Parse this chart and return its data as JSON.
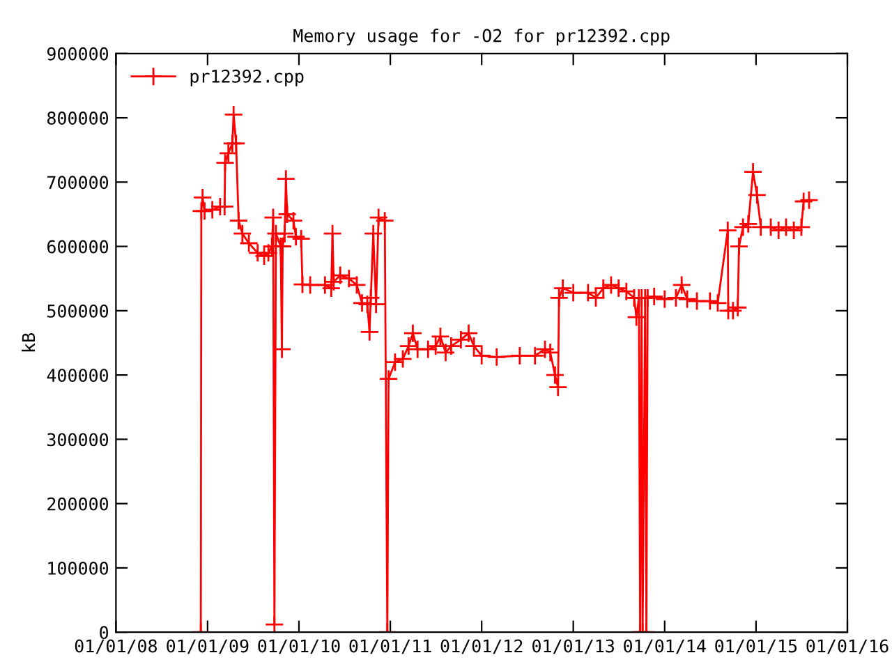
{
  "chart_data": {
    "type": "line",
    "title": "Memory usage for -O2 for pr12392.cpp",
    "ylabel": "kB",
    "x": [
      "2008-12-05",
      "2008-12-07",
      "2008-12-12",
      "2008-12-20",
      "2009-01-20",
      "2009-02-20",
      "2009-03-10",
      "2009-03-12",
      "2009-03-25",
      "2009-04-10",
      "2009-04-15",
      "2009-04-25",
      "2009-05-05",
      "2009-05-20",
      "2009-06-15",
      "2009-07-20",
      "2009-08-15",
      "2009-09-01",
      "2009-09-15",
      "2009-09-20",
      "2009-09-25",
      "2009-10-01",
      "2009-10-20",
      "2009-10-25",
      "2009-10-28",
      "2009-11-05",
      "2009-11-10",
      "2009-11-15",
      "2009-12-10",
      "2009-12-20",
      "2010-01-10",
      "2010-01-15",
      "2010-02-15",
      "2010-04-15",
      "2010-05-10",
      "2010-05-15",
      "2010-05-20",
      "2010-06-15",
      "2010-07-20",
      "2010-08-20",
      "2010-09-10",
      "2010-10-01",
      "2010-10-10",
      "2010-10-15",
      "2010-10-25",
      "2010-11-05",
      "2010-11-15",
      "2010-12-10",
      "2010-12-20",
      "2010-12-25",
      "2011-01-20",
      "2011-02-20",
      "2011-03-15",
      "2011-04-01",
      "2011-04-20",
      "2011-06-01",
      "2011-07-01",
      "2011-07-20",
      "2011-08-10",
      "2011-09-01",
      "2011-10-10",
      "2011-11-10",
      "2011-12-01",
      "2012-01-01",
      "2012-03-01",
      "2012-06-01",
      "2012-08-01",
      "2012-09-10",
      "2012-10-01",
      "2012-10-20",
      "2012-11-01",
      "2012-11-05",
      "2012-11-20",
      "2013-01-01",
      "2013-03-01",
      "2013-04-01",
      "2013-05-01",
      "2013-06-01",
      "2013-07-01",
      "2013-08-01",
      "2013-09-01",
      "2013-09-10",
      "2013-09-20",
      "2013-09-25",
      "2013-10-01",
      "2013-10-05",
      "2013-10-15",
      "2013-10-20",
      "2013-10-25",
      "2013-11-20",
      "2014-01-01",
      "2014-02-15",
      "2014-03-10",
      "2014-04-01",
      "2014-05-10",
      "2014-07-01",
      "2014-08-01",
      "2014-09-10",
      "2014-09-12",
      "2014-10-01",
      "2014-10-20",
      "2014-10-25",
      "2014-11-10",
      "2014-12-01",
      "2014-12-20",
      "2015-01-05",
      "2015-01-20",
      "2015-03-01",
      "2015-04-01",
      "2015-05-01",
      "2015-06-01",
      "2015-07-01",
      "2015-07-10",
      "2015-08-01"
    ],
    "series": [
      {
        "name": "pr12392.cpp",
        "color": "#ff0000",
        "values": [
          0,
          655000,
          676000,
          655000,
          657000,
          662000,
          662000,
          730000,
          745000,
          760000,
          805000,
          760000,
          640000,
          620000,
          605000,
          590000,
          585000,
          590000,
          600000,
          645000,
          12000,
          620000,
          600000,
          440000,
          600000,
          620000,
          705000,
          650000,
          640000,
          615000,
          612000,
          541000,
          540000,
          540000,
          535000,
          620000,
          545000,
          555000,
          550000,
          540000,
          512000,
          510000,
          467000,
          520000,
          620000,
          510000,
          645000,
          640000,
          0,
          394000,
          420000,
          425000,
          445000,
          465000,
          440000,
          440000,
          445000,
          460000,
          435000,
          445000,
          455000,
          465000,
          445000,
          430000,
          428000,
          430000,
          430000,
          440000,
          435000,
          400000,
          381000,
          520000,
          535000,
          528000,
          528000,
          520000,
          535000,
          540000,
          535000,
          530000,
          520000,
          490000,
          520000,
          0,
          520000,
          0,
          520000,
          0,
          520000,
          522000,
          518000,
          520000,
          540000,
          518000,
          515000,
          515000,
          512000,
          625000,
          500000,
          500000,
          505000,
          600000,
          630000,
          635000,
          716000,
          680000,
          630000,
          630000,
          625000,
          630000,
          625000,
          630000,
          670000,
          672000
        ]
      }
    ],
    "xlim": [
      "2008-01-01",
      "2016-01-01"
    ],
    "xticks": [
      {
        "value": "2008-01-01",
        "label": "01/01/08"
      },
      {
        "value": "2009-01-01",
        "label": "01/01/09"
      },
      {
        "value": "2010-01-01",
        "label": "01/01/10"
      },
      {
        "value": "2011-01-01",
        "label": "01/01/11"
      },
      {
        "value": "2012-01-01",
        "label": "01/01/12"
      },
      {
        "value": "2013-01-01",
        "label": "01/01/13"
      },
      {
        "value": "2014-01-01",
        "label": "01/01/14"
      },
      {
        "value": "2015-01-01",
        "label": "01/01/15"
      },
      {
        "value": "2016-01-01",
        "label": "01/01/16"
      }
    ],
    "ylim": [
      0,
      900000
    ],
    "yticks": [
      0,
      100000,
      200000,
      300000,
      400000,
      500000,
      600000,
      700000,
      800000,
      900000
    ],
    "marker": "cross",
    "line_style": "solid",
    "grid": false,
    "legend": "top left"
  }
}
